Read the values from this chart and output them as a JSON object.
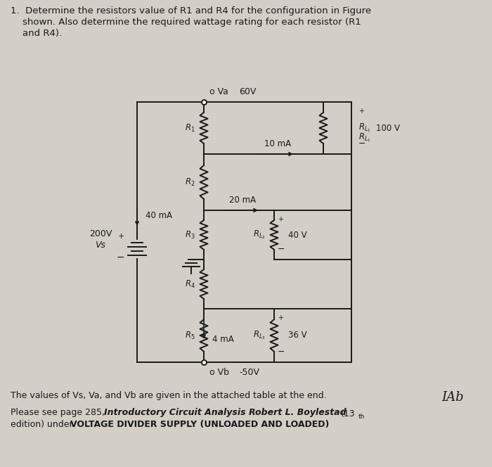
{
  "bg_color": "#d3cec6",
  "text_color": "#1a1a1a",
  "circuit_color": "#1a1a1a",
  "Va_value": "60V",
  "Vb_value": "-50V",
  "Vs_value": "200V",
  "Vs_label": "Vs",
  "I_total": "40 mA",
  "I1": "10 mA",
  "I2": "20 mA",
  "I5": "4 mA",
  "RL1_v": "100 V",
  "RL2_v": "40 V",
  "RL3_v": "36 V",
  "footer1": "The values of Vs, Va, and Vb are given in the attached table at the end.",
  "tab_label": "IAb",
  "title_line1": "1.  Determine the resistors value of R1 and R4 for the configuration in Figure",
  "title_line2": "    shown. Also determine the required wattage rating for each resistor (R1",
  "title_line3": "    and R4)."
}
